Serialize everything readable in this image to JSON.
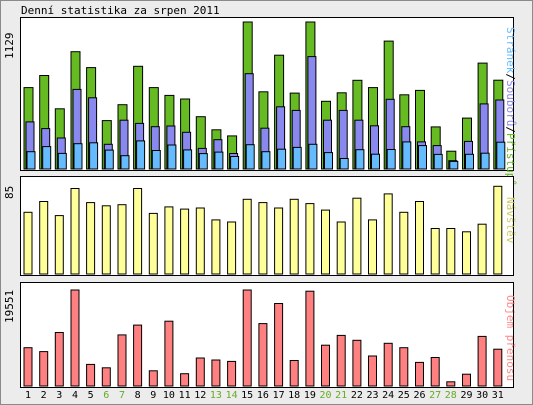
{
  "colors": {
    "visits": "#66bb22",
    "pages": "#8888ee",
    "files": "#66bbff",
    "visitors": "#ffff99",
    "traffic": "#ff8080",
    "weekend_day_label": "#66aa22",
    "weekday_day_label": "#000000",
    "visitors_legend": "#cccc66",
    "traffic_legend": "#ff8888"
  },
  "chart_data": {
    "title": "Denní statistika za srpen 2011",
    "type": "bar",
    "categories": [
      "1",
      "2",
      "3",
      "4",
      "5",
      "6",
      "7",
      "8",
      "9",
      "10",
      "11",
      "12",
      "13",
      "14",
      "15",
      "16",
      "17",
      "18",
      "19",
      "20",
      "21",
      "22",
      "23",
      "24",
      "25",
      "26",
      "27",
      "28",
      "29",
      "30",
      "31"
    ],
    "weekend_days": [
      "6",
      "7",
      "13",
      "14",
      "20",
      "21",
      "27",
      "28"
    ],
    "panels": [
      {
        "ymax_label": "1129",
        "ylim": [
          0,
          1129
        ],
        "legend": [
          {
            "name": "Stránek",
            "color": "#66bbff"
          },
          {
            "name": "/",
            "color": "#000000"
          },
          {
            "name": "Souborů",
            "color": "#8888ee"
          },
          {
            "name": "/",
            "color": "#000000"
          },
          {
            "name": "Přístupů",
            "color": "#66bb22"
          }
        ],
        "series": [
          {
            "name": "Přístupů",
            "values": [
              625,
              718,
              462,
              901,
              779,
              372,
              494,
              789,
              625,
              565,
              538,
              402,
              301,
              254,
              1129,
              593,
              874,
              583,
              1129,
              520,
              585,
              681,
              625,
              982,
              570,
              604,
              323,
              137,
              391,
              813,
              682
            ]
          },
          {
            "name": "Souborů",
            "values": [
              362,
              310,
              238,
              611,
              547,
              190,
              375,
              350,
              325,
              330,
              282,
              158,
              225,
              119,
              732,
              313,
              478,
              450,
              863,
              375,
              450,
              375,
              332,
              535,
              325,
              208,
              180,
              64,
              212,
              500,
              530
            ]
          },
          {
            "name": "Stránek",
            "values": [
              133,
              172,
              120,
              194,
              201,
              145,
              102,
              216,
              142,
              184,
              147,
              118,
              130,
              96,
              187,
              133,
              152,
              166,
              190,
              126,
              81,
              148,
              114,
              150,
              208,
              180,
              112,
              58,
              113,
              121,
              206
            ]
          }
        ]
      },
      {
        "ymax_label": "85",
        "ylim": [
          0,
          85
        ],
        "legend": [
          {
            "name": "Návštěv",
            "color": "#cccc66"
          }
        ],
        "series": [
          {
            "name": "Návštěv",
            "values": [
              57,
              67,
              54,
              79,
              66,
              63,
              64,
              79,
              56,
              62,
              60,
              61,
              50,
              48,
              69,
              66,
              61,
              69,
              65,
              59,
              48,
              70,
              50,
              74,
              57,
              67,
              42,
              42,
              39,
              46,
              81
            ]
          }
        ]
      },
      {
        "ymax_label": "19551",
        "ylim": [
          0,
          19551
        ],
        "legend": [
          {
            "name": "Objem přenosu",
            "color": "#ff8888"
          }
        ],
        "series": [
          {
            "name": "Objem přenosu",
            "values": [
              7800,
              7000,
              10900,
              19551,
              4400,
              3700,
              10400,
              12400,
              3100,
              13200,
              2500,
              5700,
              5300,
              5000,
              19551,
              12700,
              16800,
              5200,
              19300,
              8300,
              10300,
              9300,
              6100,
              8700,
              7800,
              4800,
              5800,
              850,
              2400,
              10100,
              7500
            ]
          }
        ]
      }
    ]
  }
}
